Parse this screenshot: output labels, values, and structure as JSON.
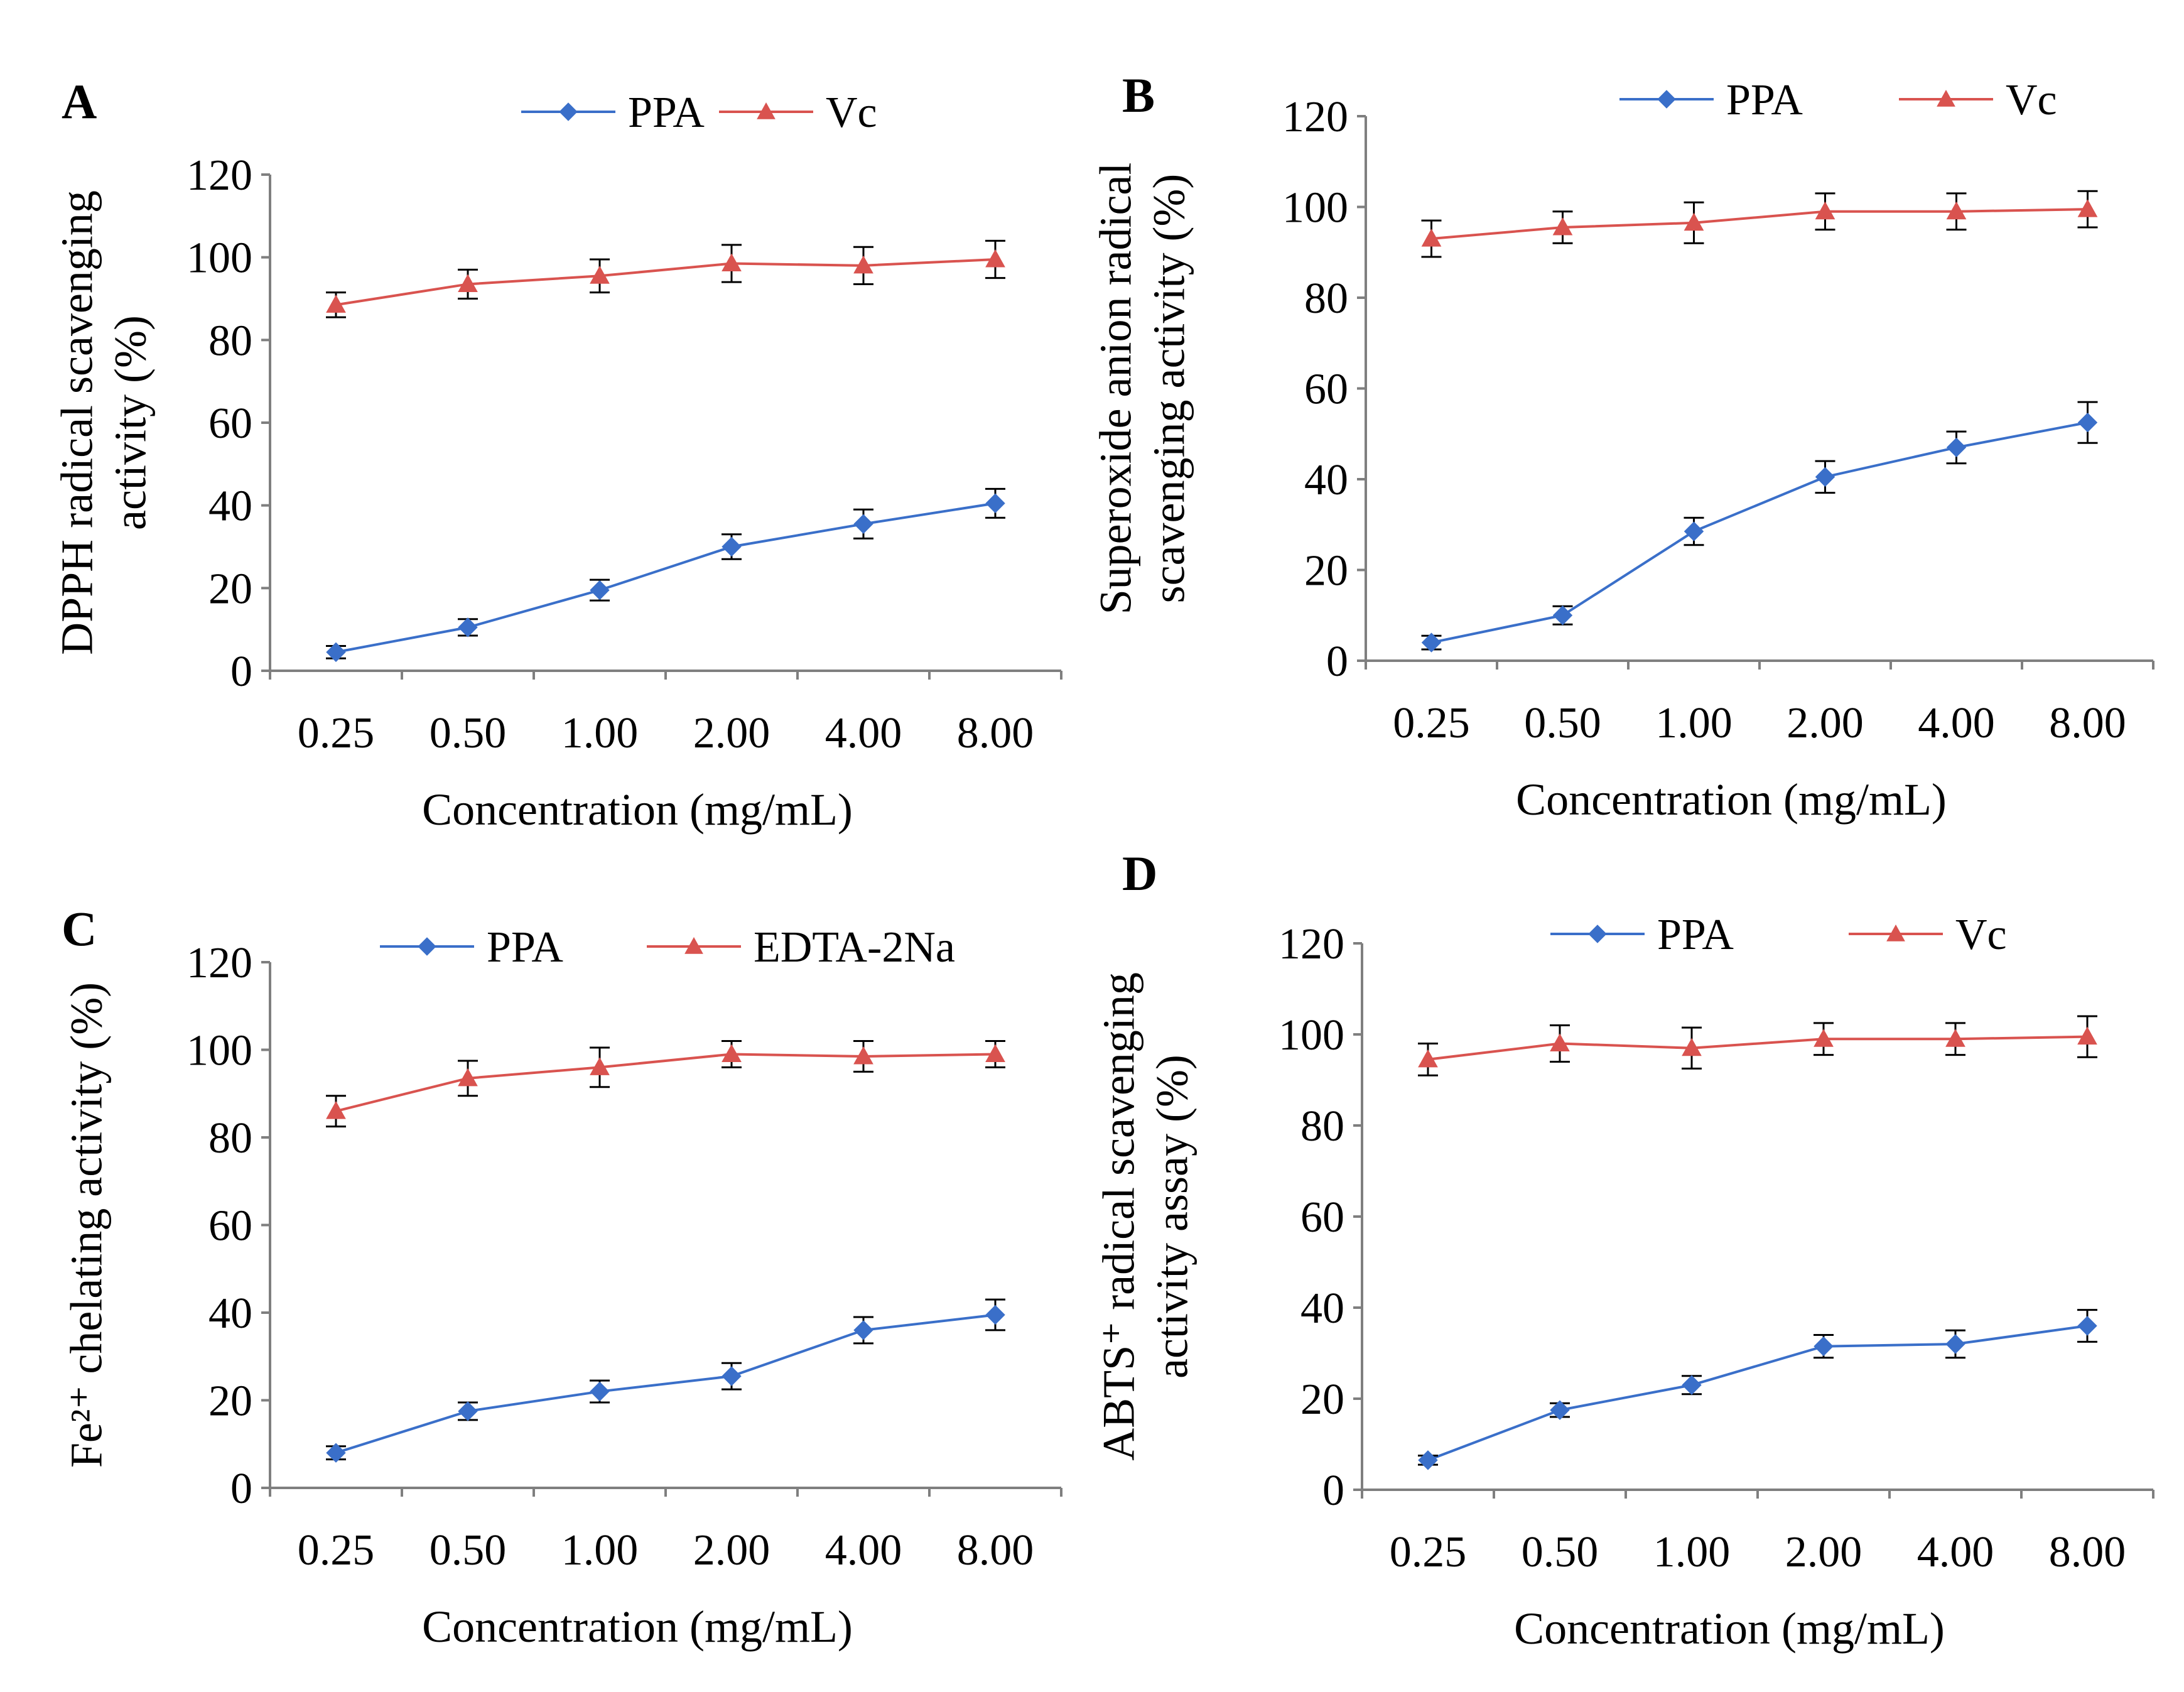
{
  "figure": {
    "panels": [
      "A",
      "B",
      "C",
      "D"
    ]
  },
  "chart_data": [
    {
      "panel": "A",
      "type": "line",
      "title": "",
      "xlabel": "Concentration (mg/mL)",
      "ylabel_lines": [
        "DPPH radical scavenging",
        "activity (%)"
      ],
      "categories": [
        "0.25",
        "0.50",
        "1.00",
        "2.00",
        "4.00",
        "8.00"
      ],
      "ylim": [
        0,
        120
      ],
      "yticks": [
        0,
        20,
        40,
        60,
        80,
        100,
        120
      ],
      "grid": false,
      "legend_position": "top-right",
      "series": [
        {
          "name": "PPA",
          "marker": "diamond",
          "color": "#3a6fc9",
          "values": [
            4.5,
            10.5,
            19.5,
            30.0,
            35.5,
            40.5
          ],
          "errors": [
            1.5,
            2.0,
            2.5,
            3.0,
            3.5,
            3.5
          ]
        },
        {
          "name": "Vc",
          "marker": "triangle",
          "color": "#d9534f",
          "values": [
            88.5,
            93.5,
            95.5,
            98.5,
            98.0,
            99.5
          ],
          "errors": [
            3.0,
            3.5,
            4.0,
            4.5,
            4.5,
            4.5
          ]
        }
      ]
    },
    {
      "panel": "B",
      "type": "line",
      "title": "",
      "xlabel": "Concentration (mg/mL)",
      "ylabel_lines": [
        "Superoxide anion radical",
        "scavenging activity (%)"
      ],
      "categories": [
        "0.25",
        "0.50",
        "1.00",
        "2.00",
        "4.00",
        "8.00"
      ],
      "ylim": [
        0,
        120
      ],
      "yticks": [
        0,
        20,
        40,
        60,
        80,
        100,
        120
      ],
      "grid": false,
      "legend_position": "top-right",
      "series": [
        {
          "name": "PPA",
          "marker": "diamond",
          "color": "#3a6fc9",
          "values": [
            4.0,
            10.0,
            28.5,
            40.5,
            47.0,
            52.5
          ],
          "errors": [
            1.5,
            2.0,
            3.0,
            3.5,
            3.5,
            4.5
          ]
        },
        {
          "name": "Vc",
          "marker": "triangle",
          "color": "#d9534f",
          "values": [
            93.0,
            95.5,
            96.5,
            99.0,
            99.0,
            99.5
          ],
          "errors": [
            4.0,
            3.5,
            4.5,
            4.0,
            4.0,
            4.0
          ]
        }
      ]
    },
    {
      "panel": "C",
      "type": "line",
      "title": "",
      "xlabel": "Concentration (mg/mL)",
      "ylabel_lines": [
        "Fe²⁺ chelating activity (%)"
      ],
      "categories": [
        "0.25",
        "0.50",
        "1.00",
        "2.00",
        "4.00",
        "8.00"
      ],
      "ylim": [
        0,
        120
      ],
      "yticks": [
        0,
        20,
        40,
        60,
        80,
        100,
        120
      ],
      "grid": false,
      "legend_position": "top-right",
      "series": [
        {
          "name": "PPA",
          "marker": "diamond",
          "color": "#3a6fc9",
          "values": [
            8.0,
            17.5,
            22.0,
            25.5,
            36.0,
            39.5
          ],
          "errors": [
            1.5,
            2.0,
            2.5,
            3.0,
            3.0,
            3.5
          ]
        },
        {
          "name": "EDTA-2Na",
          "marker": "triangle",
          "color": "#d9534f",
          "values": [
            86.0,
            93.5,
            96.0,
            99.0,
            98.5,
            99.0
          ],
          "errors": [
            3.5,
            4.0,
            4.5,
            3.0,
            3.5,
            3.0
          ]
        }
      ]
    },
    {
      "panel": "D",
      "type": "line",
      "title": "",
      "xlabel": "Concentration (mg/mL)",
      "ylabel_lines": [
        "ABTS⁺ radical scavenging",
        "activity assay (%)"
      ],
      "categories": [
        "0.25",
        "0.50",
        "1.00",
        "2.00",
        "4.00",
        "8.00"
      ],
      "ylim": [
        0,
        120
      ],
      "yticks": [
        0,
        20,
        40,
        60,
        80,
        100,
        120
      ],
      "grid": false,
      "legend_position": "top-right",
      "series": [
        {
          "name": "PPA",
          "marker": "diamond",
          "color": "#3a6fc9",
          "values": [
            6.5,
            17.5,
            23.0,
            31.5,
            32.0,
            36.0
          ],
          "errors": [
            1.0,
            1.5,
            2.0,
            2.5,
            3.0,
            3.5
          ]
        },
        {
          "name": "Vc",
          "marker": "triangle",
          "color": "#d9534f",
          "values": [
            94.5,
            98.0,
            97.0,
            99.0,
            99.0,
            99.5
          ],
          "errors": [
            3.5,
            4.0,
            4.5,
            3.5,
            3.5,
            4.5
          ]
        }
      ]
    }
  ]
}
